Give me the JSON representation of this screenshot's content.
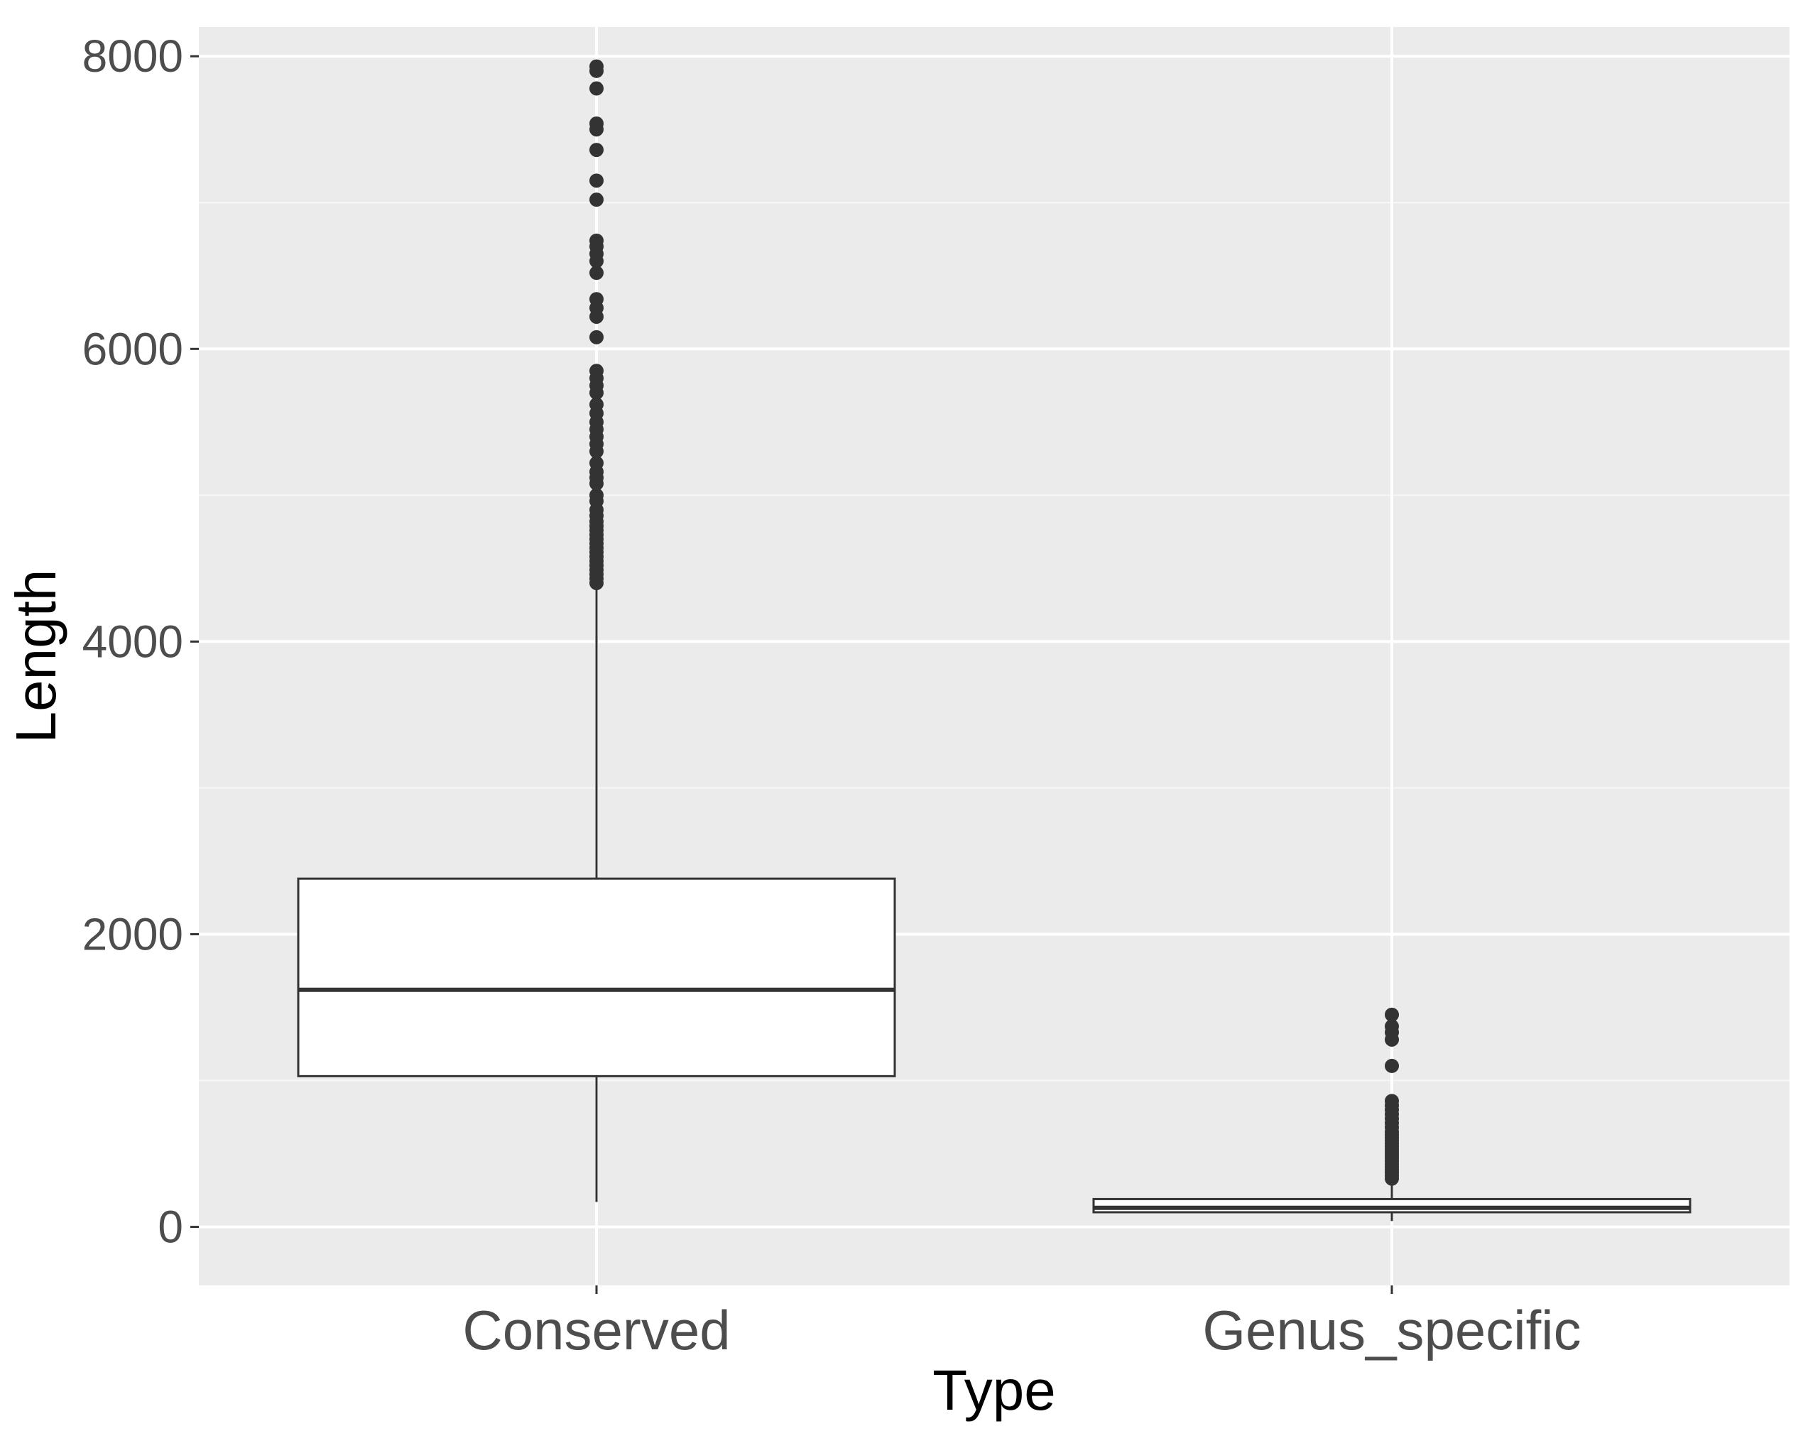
{
  "chart_data": {
    "type": "boxplot",
    "title": "",
    "xlabel": "Type",
    "ylabel": "Length",
    "ylim": [
      -400,
      8200
    ],
    "yticks": [
      0,
      2000,
      4000,
      6000,
      8000
    ],
    "grid": true,
    "legend": "none",
    "colors": {
      "panel_background": "#ebebeb",
      "grid_major": "#ffffff",
      "box_fill": "#ffffff",
      "box_stroke": "#333333",
      "outlier": "#333333",
      "tick_text": "#4d4d4d"
    },
    "categories": [
      "Conserved",
      "Genus_specific"
    ],
    "boxes": [
      {
        "category": "Conserved",
        "min": 170,
        "q1": 1030,
        "median": 1620,
        "q3": 2380,
        "max": 4380,
        "outliers": [
          4400,
          4430,
          4460,
          4490,
          4520,
          4550,
          4580,
          4610,
          4640,
          4670,
          4700,
          4730,
          4760,
          4790,
          4820,
          4860,
          4900,
          4960,
          5000,
          5080,
          5120,
          5160,
          5220,
          5300,
          5350,
          5400,
          5450,
          5500,
          5560,
          5620,
          5700,
          5750,
          5800,
          5850,
          6080,
          6220,
          6280,
          6340,
          6520,
          6600,
          6650,
          6700,
          6740,
          7020,
          7150,
          7360,
          7500,
          7540,
          7780,
          7900,
          7930
        ]
      },
      {
        "category": "Genus_specific",
        "min": 40,
        "q1": 100,
        "median": 130,
        "q3": 190,
        "max": 320,
        "outliers": [
          330,
          350,
          370,
          390,
          410,
          430,
          450,
          470,
          490,
          510,
          530,
          550,
          570,
          590,
          610,
          630,
          650,
          680,
          710,
          740,
          770,
          800,
          830,
          860,
          1100,
          1280,
          1330,
          1370,
          1450
        ]
      }
    ]
  }
}
